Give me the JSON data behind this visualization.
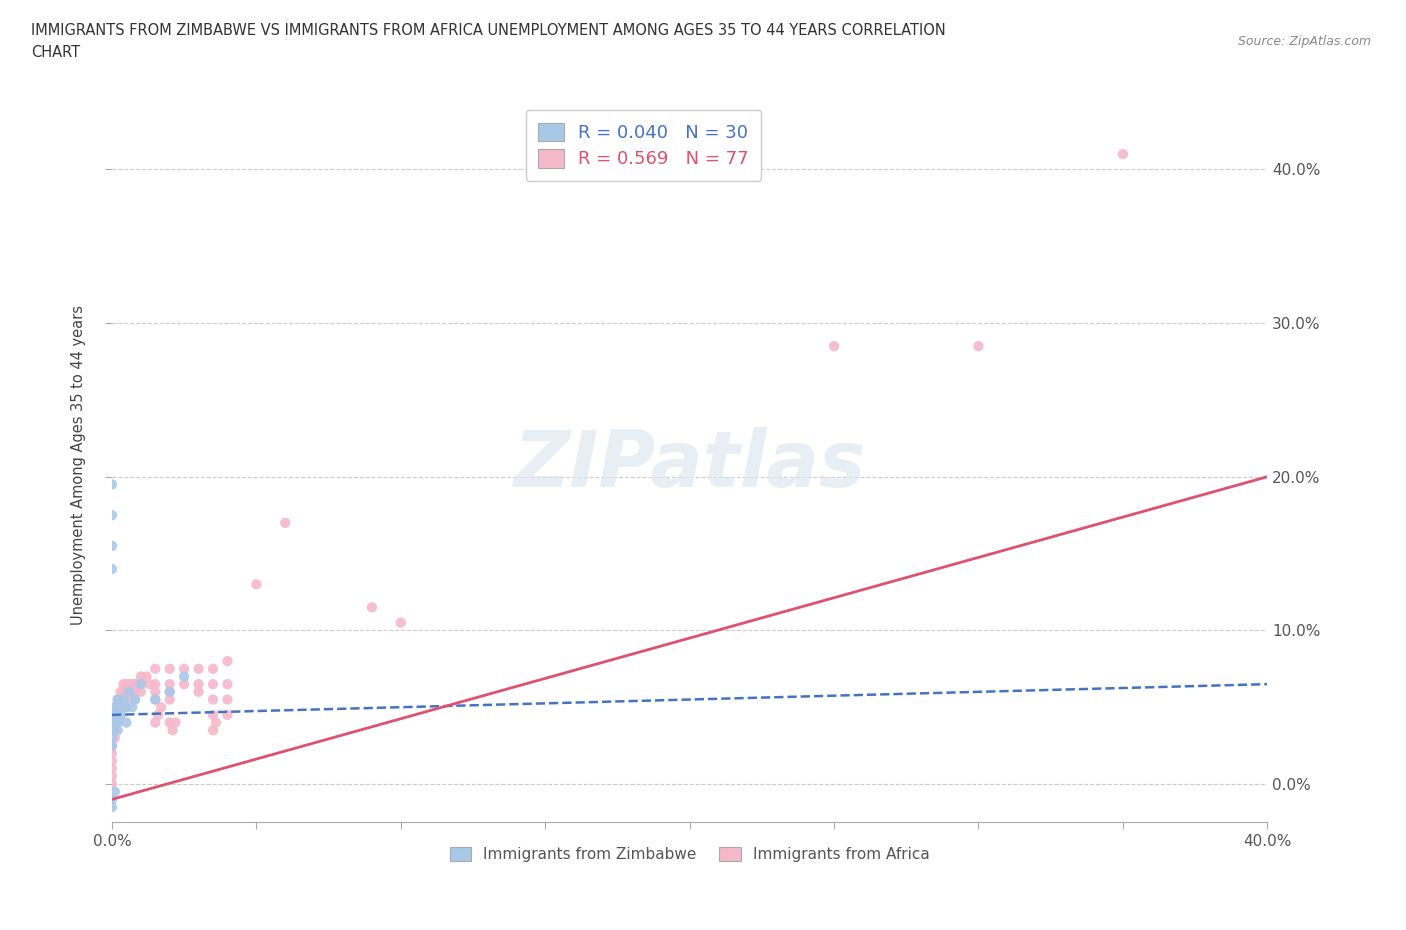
{
  "title_line1": "IMMIGRANTS FROM ZIMBABWE VS IMMIGRANTS FROM AFRICA UNEMPLOYMENT AMONG AGES 35 TO 44 YEARS CORRELATION",
  "title_line2": "CHART",
  "source": "Source: ZipAtlas.com",
  "ylabel": "Unemployment Among Ages 35 to 44 years",
  "xlim": [
    0.0,
    0.4
  ],
  "ylim": [
    -0.025,
    0.44
  ],
  "xticks": [
    0.0,
    0.05,
    0.1,
    0.15,
    0.2,
    0.25,
    0.3,
    0.35,
    0.4
  ],
  "yticks": [
    0.0,
    0.1,
    0.2,
    0.3,
    0.4
  ],
  "background_color": "#ffffff",
  "watermark": "ZIPatlas",
  "zimbabwe_color": "#a8c8e8",
  "africa_color": "#f5b8ca",
  "zimbabwe_line_color": "#4472c4",
  "africa_line_color": "#e05070",
  "R_zimbabwe": 0.04,
  "N_zimbabwe": 30,
  "R_africa": 0.569,
  "N_africa": 77,
  "zim_line_x0": 0.0,
  "zim_line_y0": 0.045,
  "zim_line_x1": 0.4,
  "zim_line_y1": 0.065,
  "afr_line_x0": 0.0,
  "afr_line_y0": -0.01,
  "afr_line_x1": 0.4,
  "afr_line_y1": 0.2,
  "zimbabwe_scatter": [
    [
      0.0,
      0.045
    ],
    [
      0.0,
      0.04
    ],
    [
      0.0,
      0.035
    ],
    [
      0.0,
      0.03
    ],
    [
      0.0,
      0.025
    ],
    [
      0.001,
      0.05
    ],
    [
      0.001,
      0.045
    ],
    [
      0.001,
      0.04
    ],
    [
      0.002,
      0.055
    ],
    [
      0.002,
      0.04
    ],
    [
      0.002,
      0.035
    ],
    [
      0.003,
      0.05
    ],
    [
      0.003,
      0.045
    ],
    [
      0.004,
      0.055
    ],
    [
      0.005,
      0.05
    ],
    [
      0.005,
      0.04
    ],
    [
      0.006,
      0.06
    ],
    [
      0.007,
      0.05
    ],
    [
      0.008,
      0.055
    ],
    [
      0.01,
      0.065
    ],
    [
      0.0,
      0.195
    ],
    [
      0.0,
      0.175
    ],
    [
      0.0,
      0.155
    ],
    [
      0.0,
      0.14
    ],
    [
      0.0,
      -0.01
    ],
    [
      0.0,
      -0.015
    ],
    [
      0.001,
      -0.005
    ],
    [
      0.015,
      0.055
    ],
    [
      0.02,
      0.06
    ],
    [
      0.025,
      0.07
    ]
  ],
  "africa_scatter": [
    [
      0.0,
      0.04
    ],
    [
      0.0,
      0.035
    ],
    [
      0.0,
      0.03
    ],
    [
      0.0,
      0.025
    ],
    [
      0.0,
      0.02
    ],
    [
      0.0,
      0.015
    ],
    [
      0.0,
      0.01
    ],
    [
      0.0,
      0.005
    ],
    [
      0.0,
      0.0
    ],
    [
      0.001,
      0.05
    ],
    [
      0.001,
      0.045
    ],
    [
      0.001,
      0.04
    ],
    [
      0.001,
      0.035
    ],
    [
      0.001,
      0.03
    ],
    [
      0.002,
      0.055
    ],
    [
      0.002,
      0.05
    ],
    [
      0.002,
      0.045
    ],
    [
      0.002,
      0.04
    ],
    [
      0.003,
      0.06
    ],
    [
      0.003,
      0.055
    ],
    [
      0.003,
      0.05
    ],
    [
      0.003,
      0.045
    ],
    [
      0.004,
      0.065
    ],
    [
      0.004,
      0.06
    ],
    [
      0.004,
      0.055
    ],
    [
      0.005,
      0.065
    ],
    [
      0.005,
      0.06
    ],
    [
      0.005,
      0.055
    ],
    [
      0.005,
      0.05
    ],
    [
      0.006,
      0.065
    ],
    [
      0.006,
      0.06
    ],
    [
      0.007,
      0.065
    ],
    [
      0.007,
      0.06
    ],
    [
      0.008,
      0.065
    ],
    [
      0.008,
      0.06
    ],
    [
      0.008,
      0.055
    ],
    [
      0.01,
      0.07
    ],
    [
      0.01,
      0.065
    ],
    [
      0.01,
      0.06
    ],
    [
      0.012,
      0.07
    ],
    [
      0.013,
      0.065
    ],
    [
      0.015,
      0.075
    ],
    [
      0.015,
      0.065
    ],
    [
      0.015,
      0.06
    ],
    [
      0.015,
      0.055
    ],
    [
      0.015,
      0.04
    ],
    [
      0.016,
      0.045
    ],
    [
      0.017,
      0.05
    ],
    [
      0.02,
      0.075
    ],
    [
      0.02,
      0.065
    ],
    [
      0.02,
      0.06
    ],
    [
      0.02,
      0.055
    ],
    [
      0.02,
      0.04
    ],
    [
      0.021,
      0.035
    ],
    [
      0.022,
      0.04
    ],
    [
      0.025,
      0.075
    ],
    [
      0.025,
      0.065
    ],
    [
      0.03,
      0.075
    ],
    [
      0.03,
      0.065
    ],
    [
      0.03,
      0.06
    ],
    [
      0.035,
      0.075
    ],
    [
      0.035,
      0.065
    ],
    [
      0.035,
      0.055
    ],
    [
      0.035,
      0.045
    ],
    [
      0.035,
      0.035
    ],
    [
      0.036,
      0.04
    ],
    [
      0.04,
      0.08
    ],
    [
      0.04,
      0.065
    ],
    [
      0.04,
      0.055
    ],
    [
      0.04,
      0.045
    ],
    [
      0.05,
      0.13
    ],
    [
      0.06,
      0.17
    ],
    [
      0.09,
      0.115
    ],
    [
      0.1,
      0.105
    ],
    [
      0.25,
      0.285
    ],
    [
      0.3,
      0.285
    ],
    [
      0.35,
      0.41
    ]
  ]
}
